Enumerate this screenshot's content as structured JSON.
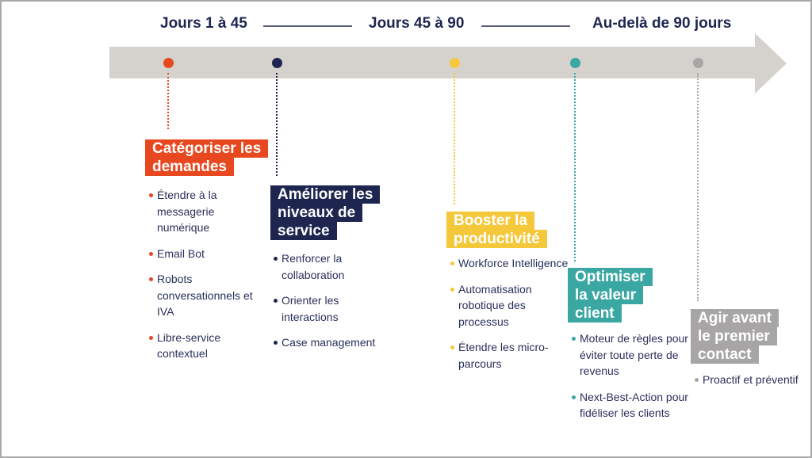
{
  "phases": [
    "Jours 1 à 45",
    "Jours 45 à 90",
    "Au-delà de 90 jours"
  ],
  "colors": {
    "orange": "#e8481f",
    "navy": "#1e2650",
    "yellow": "#f5c73a",
    "teal": "#3aa7a3",
    "gray": "#a8a5a6",
    "band": "#d5d2cd"
  },
  "steps": [
    {
      "title": "Catégoriser les demandes",
      "items": [
        "Étendre à la messagerie numérique",
        "Email Bot",
        "Robots conversationnels et IVA",
        "Libre-service contextuel"
      ]
    },
    {
      "title": "Améliorer les niveaux de service",
      "items": [
        "Renforcer la collaboration",
        "Orienter les interactions",
        "Case management"
      ]
    },
    {
      "title": "Booster la productivité",
      "items": [
        "Workforce Intelligence",
        "Automatisation robotique des processus",
        "Étendre les micro-parcours"
      ]
    },
    {
      "title": "Optimiser la valeur client",
      "items": [
        "Moteur de règles pour éviter toute perte de revenus",
        "Next-Best-Action pour fidéliser les clients"
      ]
    },
    {
      "title": "Agir avant le premier contact",
      "items": [
        "Proactif et préventif"
      ]
    }
  ]
}
